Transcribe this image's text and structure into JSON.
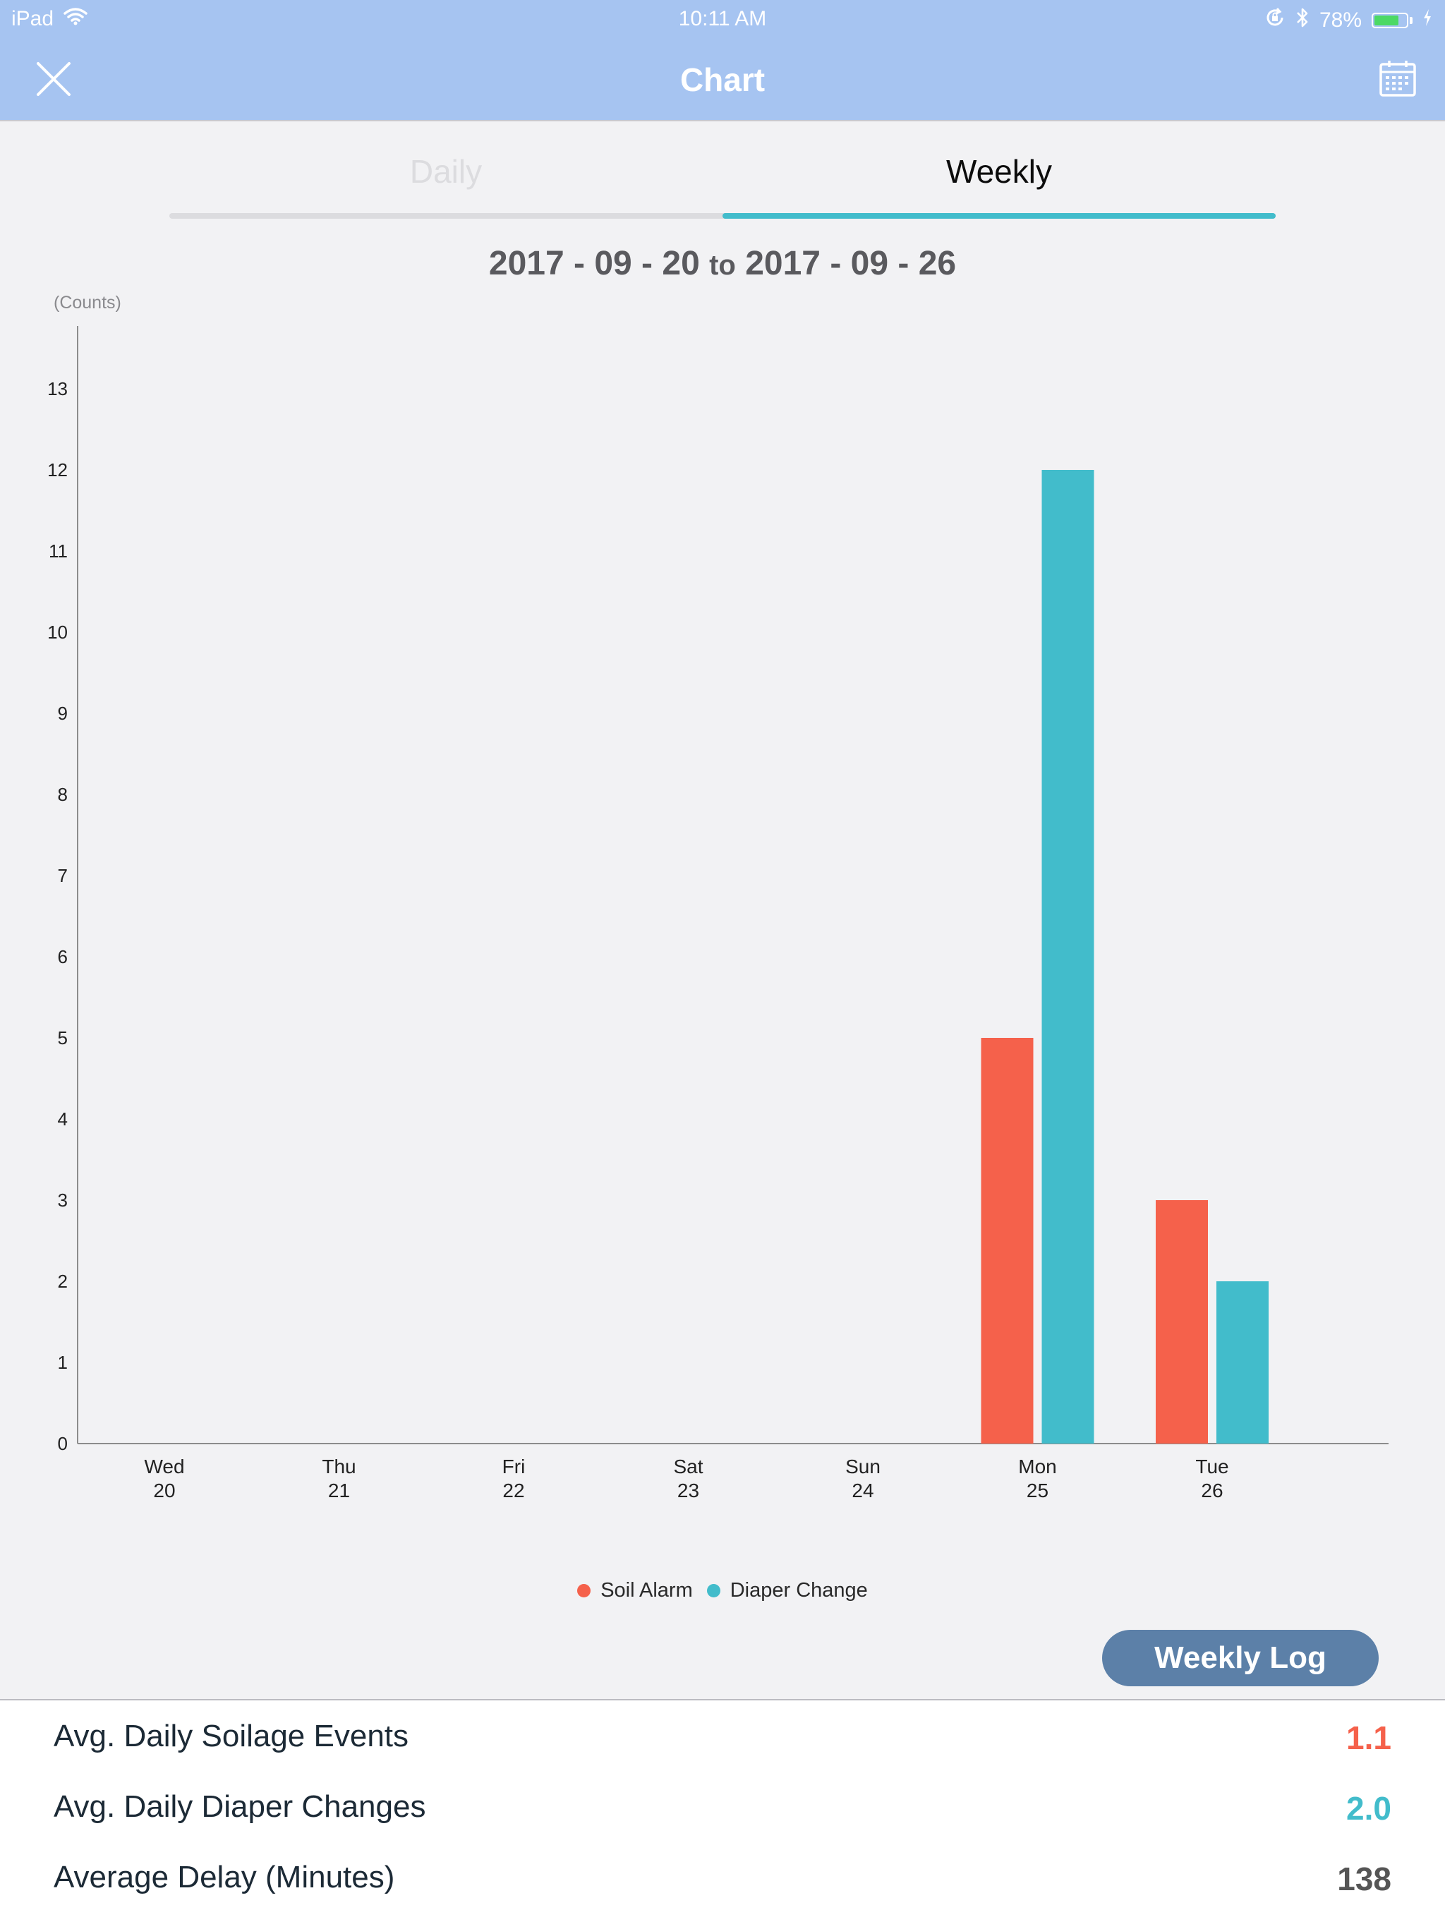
{
  "status_bar": {
    "device": "iPad",
    "time": "10:11 AM",
    "battery_text": "78%",
    "battery_level": 0.78
  },
  "nav": {
    "title": "Chart",
    "close_icon": "close-icon",
    "calendar_icon": "calendar-icon"
  },
  "tabs": [
    {
      "label": "Daily",
      "active": false
    },
    {
      "label": "Weekly",
      "active": true
    }
  ],
  "date_range": {
    "start": "2017 - 09 - 20",
    "connector": "to",
    "end": "2017 - 09 - 26"
  },
  "chart_data": {
    "type": "bar",
    "ylabel": "(Counts)",
    "ylim": [
      0,
      13
    ],
    "yticks": [
      0,
      1,
      2,
      3,
      4,
      5,
      6,
      7,
      8,
      9,
      10,
      11,
      12,
      13
    ],
    "categories": [
      {
        "day": "Wed",
        "date": "20"
      },
      {
        "day": "Thu",
        "date": "21"
      },
      {
        "day": "Fri",
        "date": "22"
      },
      {
        "day": "Sat",
        "date": "23"
      },
      {
        "day": "Sun",
        "date": "24"
      },
      {
        "day": "Mon",
        "date": "25"
      },
      {
        "day": "Tue",
        "date": "26"
      }
    ],
    "series": [
      {
        "name": "Soil Alarm",
        "color": "#f5614b",
        "values": [
          0,
          0,
          0,
          0,
          0,
          5,
          3
        ]
      },
      {
        "name": "Diaper Change",
        "color": "#42bccb",
        "values": [
          0,
          0,
          0,
          0,
          0,
          12,
          2
        ]
      }
    ],
    "legend_position": "bottom-center",
    "grid": false
  },
  "buttons": {
    "weekly_log": "Weekly Log"
  },
  "stats": [
    {
      "label": "Avg. Daily Soilage Events",
      "value": "1.1",
      "color": "#f5614b"
    },
    {
      "label": "Avg. Daily Diaper Changes",
      "value": "2.0",
      "color": "#42bccb"
    },
    {
      "label": "Average Delay (Minutes)",
      "value": "138",
      "color": "#555555"
    }
  ]
}
